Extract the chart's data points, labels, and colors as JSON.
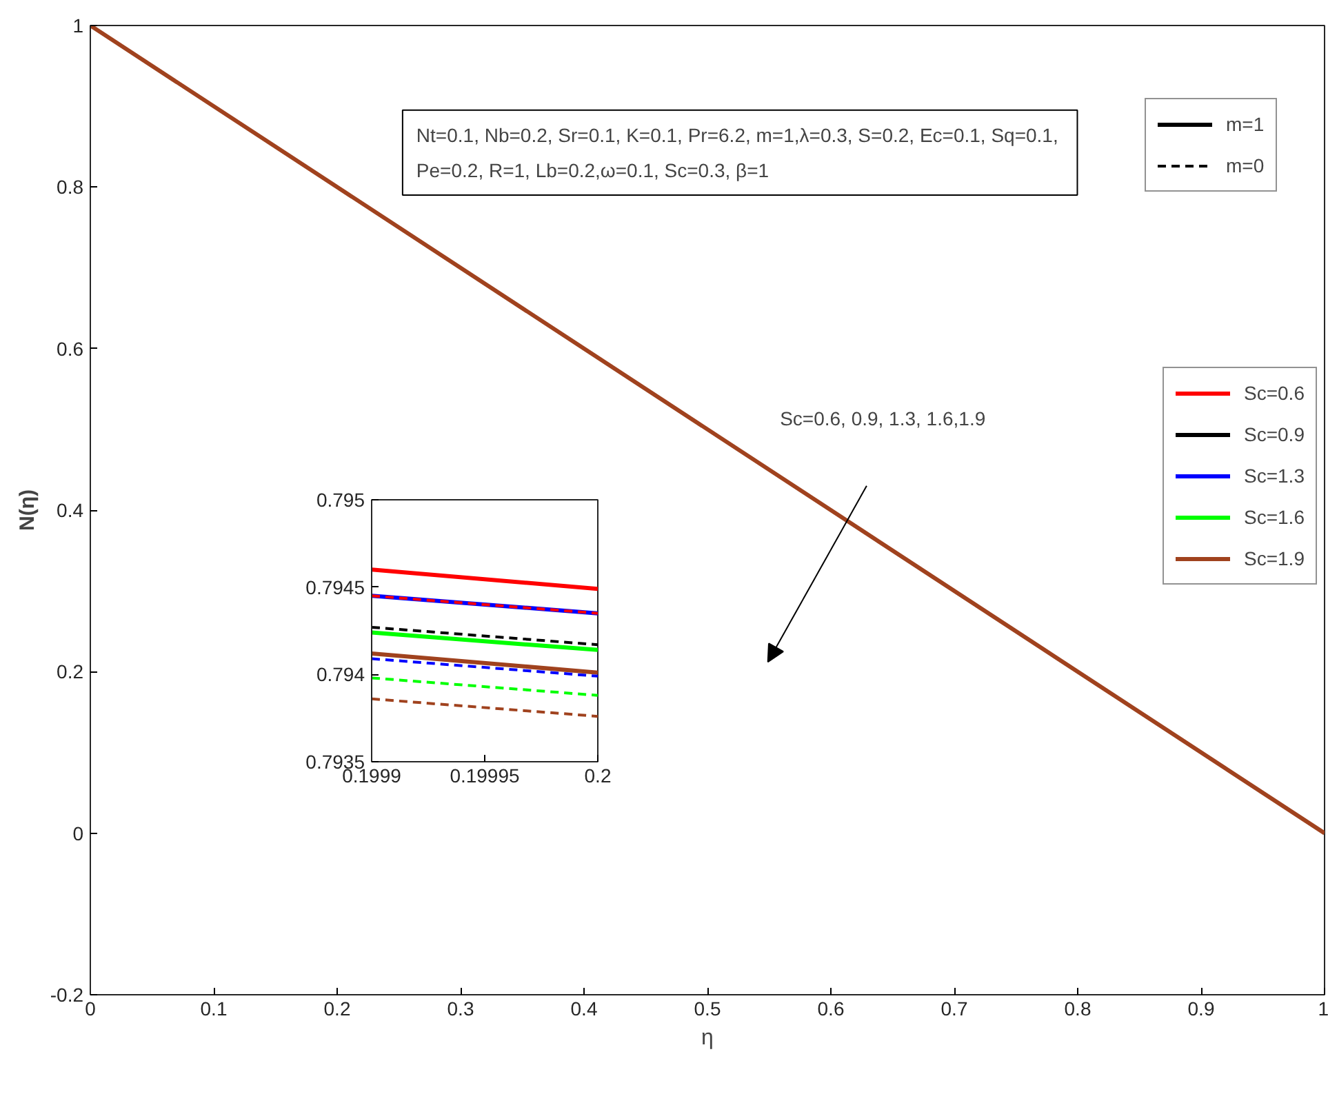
{
  "chart_data": [
    {
      "type": "line",
      "xlabel": "η",
      "ylabel": "N(η)",
      "x": [
        0,
        1
      ],
      "xlim": [
        0,
        1
      ],
      "ylim": [
        -0.2,
        1
      ],
      "xticks": [
        0,
        0.1,
        0.2,
        0.3,
        0.4,
        0.5,
        0.6,
        0.7,
        0.8,
        0.9,
        1
      ],
      "yticks": [
        -0.2,
        0,
        0.2,
        0.4,
        0.6,
        0.8,
        1
      ],
      "legend": "right",
      "annotations": [
        "Nt=0.1, Nb=0.2, Sr=0.1, K=0.1, Pr=6.2, m=1,λ=0.3, S=0.2, Ec=0.1,  Sq=0.1,\nPe=0.2, R=1, Lb=0.2,ω=0.1, Sc=0.3, β=1",
        "Sc=0.6, 0.9, 1.3, 1.6,1.9"
      ],
      "series": [
        {
          "name": "m=1",
          "color": "#000000",
          "line_style": "solid",
          "values": [
            null,
            null
          ]
        },
        {
          "name": "m=0",
          "color": "#000000",
          "line_style": "dashed",
          "values": [
            null,
            null
          ]
        },
        {
          "name": "Sc=0.6",
          "color": "#ff0000",
          "line_style": "solid",
          "values": [
            null,
            null
          ]
        },
        {
          "name": "Sc=0.9",
          "color": "#000000",
          "line_style": "solid",
          "values": [
            null,
            null
          ]
        },
        {
          "name": "Sc=1.3",
          "color": "#0000ff",
          "line_style": "solid",
          "values": [
            null,
            null
          ]
        },
        {
          "name": "Sc=1.6",
          "color": "#00ff00",
          "line_style": "solid",
          "values": [
            null,
            null
          ]
        },
        {
          "name": "Sc=1.9",
          "color": "#a0421e",
          "line_style": "solid",
          "values": [
            1,
            0
          ]
        }
      ]
    },
    {
      "type": "line",
      "x": [
        0.1999,
        0.2
      ],
      "xlim": [
        0.1999,
        0.2
      ],
      "ylim": [
        0.7935,
        0.795
      ],
      "xticks": [
        0.1999,
        0.19995,
        0.2
      ],
      "yticks": [
        0.7935,
        0.794,
        0.7945,
        0.795
      ],
      "series": [
        {
          "color": "#ff0000",
          "line_style": "solid",
          "values": [
            0.7946,
            0.79449
          ]
        },
        {
          "color": "#000000",
          "line_style": "solid",
          "values": [
            null,
            null
          ]
        },
        {
          "color": "#0000ff",
          "line_style": "solid",
          "values": [
            0.79445,
            0.79435
          ]
        },
        {
          "color": "#00ff00",
          "line_style": "solid",
          "values": [
            0.79424,
            0.79414
          ]
        },
        {
          "color": "#a0421e",
          "line_style": "solid",
          "values": [
            0.79412,
            0.79401
          ]
        },
        {
          "color": "#ff0000",
          "line_style": "dashed",
          "values": [
            0.79445,
            0.79435
          ]
        },
        {
          "color": "#000000",
          "line_style": "dashed",
          "values": [
            0.79427,
            0.79417
          ]
        },
        {
          "color": "#0000ff",
          "line_style": "dashed",
          "values": [
            0.79409,
            0.79399
          ]
        },
        {
          "color": "#00ff00",
          "line_style": "dashed",
          "values": [
            0.79398,
            0.79388
          ]
        },
        {
          "color": "#a0421e",
          "line_style": "dashed",
          "values": [
            0.79386,
            0.79376
          ]
        }
      ]
    }
  ]
}
